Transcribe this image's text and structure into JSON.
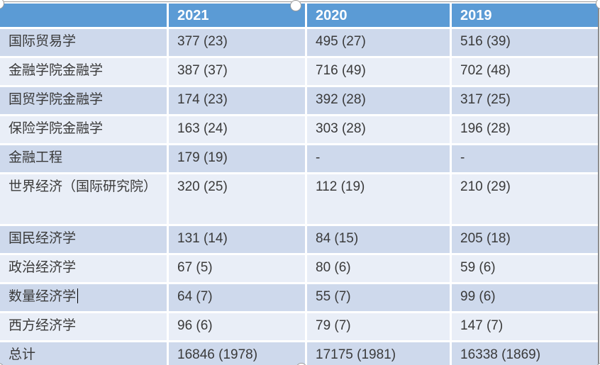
{
  "table": {
    "header": [
      "",
      "2021",
      "2020",
      "2019"
    ],
    "rows": [
      {
        "label": "国际贸易学",
        "v1": "377 (23)",
        "v2": "495 (27)",
        "v3": "516 (39)"
      },
      {
        "label": "金融学院金融学",
        "v1": "387 (37)",
        "v2": "716 (49)",
        "v3": "702 (48)"
      },
      {
        "label": "国贸学院金融学",
        "v1": "174 (23)",
        "v2": "392 (28)",
        "v3": "317 (25)"
      },
      {
        "label": "保险学院金融学",
        "v1": "163 (24)",
        "v2": "303 (28)",
        "v3": "196 (28)"
      },
      {
        "label": "金融工程",
        "v1": "179 (19)",
        "v2": "-",
        "v3": "-"
      },
      {
        "label": "世界经济（国际研究院）",
        "v1": "320 (25)",
        "v2": "112 (19)",
        "v3": "210 (29)"
      },
      {
        "label": "国民经济学",
        "v1": "131 (14)",
        "v2": "84 (15)",
        "v3": "205 (18)"
      },
      {
        "label": "政治经济学",
        "v1": "67 (5)",
        "v2": "80 (6)",
        "v3": "59 (6)"
      },
      {
        "label": "数量经济学",
        "v1": "64 (7)",
        "v2": "55 (7)",
        "v3": "99 (6)"
      },
      {
        "label": "西方经济学",
        "v1": "96 (6)",
        "v2": "79 (7)",
        "v3": "147 (7)"
      },
      {
        "label": "总计",
        "v1": "16846 (1978)",
        "v2": "17175 (1981)",
        "v3": "16338 (1869)"
      }
    ]
  },
  "colors": {
    "header_bg": "#5b9bd5",
    "header_text": "#ffffff",
    "band_dark": "#ced9ec",
    "band_light": "#e9eef7",
    "body_text": "#3a3a3a",
    "selection_line": "#9a9a9a",
    "handle_fill": "#ffffff"
  },
  "selection": {
    "state": "table-selected-editing",
    "caret_row_label": "数量经济学"
  }
}
